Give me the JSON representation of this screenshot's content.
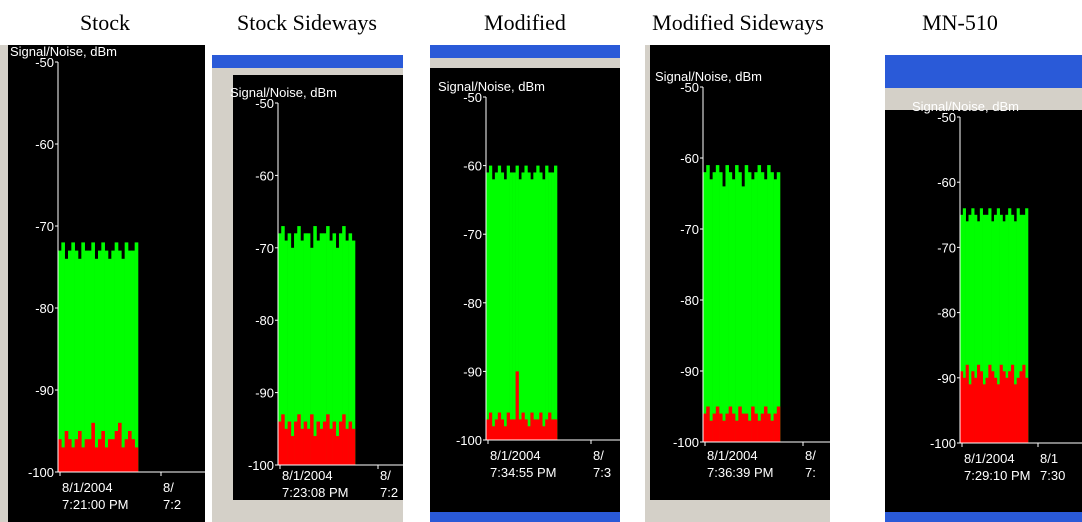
{
  "chart_data": [
    {
      "type": "bar",
      "title": "Stock",
      "ylabel": "Signal/Noise, dBm",
      "ylim": [
        -100,
        -50
      ],
      "yticks": [
        -50,
        -60,
        -70,
        -80,
        -90,
        -100
      ],
      "x_tick_labels": [
        [
          "8/1/2004",
          "7:21:00 PM"
        ],
        [
          "8/",
          "7:2"
        ]
      ],
      "series": [
        {
          "color": "#00ff00",
          "values": [
            -73,
            -72,
            -74,
            -73,
            -72,
            -73,
            -74,
            -72,
            -73,
            -73,
            -72,
            -74,
            -73,
            -72,
            -73,
            -74,
            -73,
            -72,
            -73,
            -74,
            -72,
            -73,
            -73,
            -72
          ]
        },
        {
          "color": "#ff0000",
          "values": [
            -96,
            -97,
            -95,
            -96,
            -97,
            -96,
            -95,
            -97,
            -96,
            -96,
            -94,
            -97,
            -96,
            -95,
            -97,
            -96,
            -96,
            -95,
            -94,
            -97,
            -96,
            -95,
            -96,
            -97
          ]
        }
      ]
    },
    {
      "type": "bar",
      "title": "Stock Sideways",
      "ylabel": "Signal/Noise, dBm",
      "ylim": [
        -100,
        -50
      ],
      "yticks": [
        -50,
        -60,
        -70,
        -80,
        -90,
        -100
      ],
      "x_tick_labels": [
        [
          "8/1/2004",
          "7:23:08 PM"
        ],
        [
          "8/",
          "7:2"
        ]
      ],
      "series": [
        {
          "color": "#00ff00",
          "values": [
            -68,
            -67,
            -69,
            -68,
            -70,
            -68,
            -67,
            -69,
            -68,
            -68,
            -70,
            -67,
            -69,
            -68,
            -68,
            -67,
            -69,
            -68,
            -70,
            -68,
            -67,
            -69,
            -68,
            -69
          ]
        },
        {
          "color": "#ff0000",
          "values": [
            -94,
            -93,
            -95,
            -94,
            -96,
            -94,
            -93,
            -95,
            -94,
            -95,
            -93,
            -96,
            -94,
            -95,
            -94,
            -93,
            -95,
            -94,
            -96,
            -94,
            -93,
            -95,
            -94,
            -95
          ]
        }
      ]
    },
    {
      "type": "bar",
      "title": "Modified",
      "ylabel": "Signal/Noise, dBm",
      "ylim": [
        -100,
        -50
      ],
      "yticks": [
        -50,
        -60,
        -70,
        -80,
        -90,
        -100
      ],
      "x_tick_labels": [
        [
          "8/1/2004",
          "7:34:55 PM"
        ],
        [
          "8/",
          "7:3"
        ]
      ],
      "series": [
        {
          "color": "#00ff00",
          "values": [
            -61,
            -60,
            -62,
            -61,
            -60,
            -61,
            -62,
            -60,
            -61,
            -61,
            -60,
            -62,
            -61,
            -60,
            -61,
            -62,
            -61,
            -60,
            -61,
            -62,
            -60,
            -61,
            -61,
            -60
          ]
        },
        {
          "color": "#ff0000",
          "values": [
            -97,
            -96,
            -98,
            -97,
            -96,
            -97,
            -98,
            -96,
            -97,
            -97,
            -90,
            -97,
            -96,
            -97,
            -98,
            -96,
            -97,
            -97,
            -96,
            -98,
            -97,
            -96,
            -97,
            -97
          ]
        }
      ]
    },
    {
      "type": "bar",
      "title": "Modified Sideways",
      "ylabel": "Signal/Noise, dBm",
      "ylim": [
        -100,
        -50
      ],
      "yticks": [
        -50,
        -60,
        -70,
        -80,
        -90,
        -100
      ],
      "x_tick_labels": [
        [
          "8/1/2004",
          "7:36:39 PM"
        ],
        [
          "8/",
          "7:"
        ]
      ],
      "series": [
        {
          "color": "#00ff00",
          "values": [
            -62,
            -61,
            -63,
            -62,
            -61,
            -62,
            -64,
            -61,
            -62,
            -63,
            -61,
            -62,
            -64,
            -61,
            -62,
            -63,
            -62,
            -61,
            -62,
            -63,
            -61,
            -62,
            -63,
            -62
          ]
        },
        {
          "color": "#ff0000",
          "values": [
            -96,
            -95,
            -97,
            -96,
            -95,
            -96,
            -97,
            -96,
            -95,
            -96,
            -97,
            -95,
            -96,
            -96,
            -97,
            -95,
            -96,
            -97,
            -96,
            -95,
            -96,
            -97,
            -96,
            -95
          ]
        }
      ]
    },
    {
      "type": "bar",
      "title": "MN-510",
      "ylabel": "Signal/Noise, dBm",
      "ylim": [
        -100,
        -50
      ],
      "yticks": [
        -50,
        -60,
        -70,
        -80,
        -90,
        -100
      ],
      "x_tick_labels": [
        [
          "8/1/2004",
          "7:29:10 PM"
        ],
        [
          "8/1",
          "7:30"
        ]
      ],
      "series": [
        {
          "color": "#00ff00",
          "values": [
            -65,
            -64,
            -66,
            -65,
            -64,
            -65,
            -66,
            -64,
            -65,
            -65,
            -64,
            -66,
            -65,
            -64,
            -65,
            -66,
            -65,
            -64,
            -65,
            -66,
            -64,
            -65,
            -65,
            -64
          ]
        },
        {
          "color": "#ff0000",
          "values": [
            -89,
            -90,
            -88,
            -91,
            -89,
            -90,
            -88,
            -89,
            -91,
            -90,
            -88,
            -89,
            -90,
            -91,
            -88,
            -89,
            -90,
            -89,
            -88,
            -91,
            -90,
            -89,
            -88,
            -90
          ]
        }
      ]
    }
  ]
}
